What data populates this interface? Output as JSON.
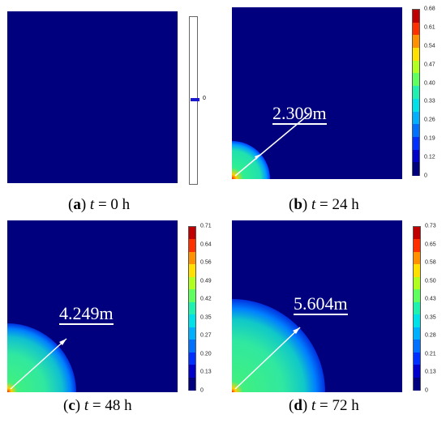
{
  "colors": {
    "background_field": "#00007e",
    "colormap": [
      "#00007e",
      "#0000c8",
      "#0030ff",
      "#0070ff",
      "#00b0ff",
      "#00e0e8",
      "#20f0b0",
      "#60ff60",
      "#b0ff20",
      "#ffe000",
      "#ff9000",
      "#ff3000",
      "#c00000"
    ]
  },
  "panels": [
    {
      "id": "a",
      "letter": "a",
      "t_label": "t",
      "equals": " = ",
      "time_value": "0 h",
      "radius_label": "",
      "colorbar_ticks": [
        "0"
      ],
      "plume_fraction": 0
    },
    {
      "id": "b",
      "letter": "b",
      "t_label": "t",
      "equals": " = ",
      "time_value": "24 h",
      "radius_label": "2.309m",
      "colorbar_ticks": [
        "0.68",
        "0.61",
        "0.54",
        "0.47",
        "0.40",
        "0.33",
        "0.26",
        "0.19",
        "0.12",
        "0"
      ],
      "plume_fraction": 0.2
    },
    {
      "id": "c",
      "letter": "c",
      "t_label": "t",
      "equals": " = ",
      "time_value": "48 h",
      "radius_label": "4.249m",
      "colorbar_ticks": [
        "0.71",
        "0.64",
        "0.56",
        "0.49",
        "0.42",
        "0.35",
        "0.27",
        "0.20",
        "0.13",
        "0"
      ],
      "plume_fraction": 0.41
    },
    {
      "id": "d",
      "letter": "d",
      "t_label": "t",
      "equals": " = ",
      "time_value": "72 h",
      "radius_label": "5.604m",
      "colorbar_ticks": [
        "0.73",
        "0.65",
        "0.58",
        "0.50",
        "0.43",
        "0.35",
        "0.28",
        "0.21",
        "0.13",
        "0"
      ],
      "plume_fraction": 0.55
    }
  ]
}
